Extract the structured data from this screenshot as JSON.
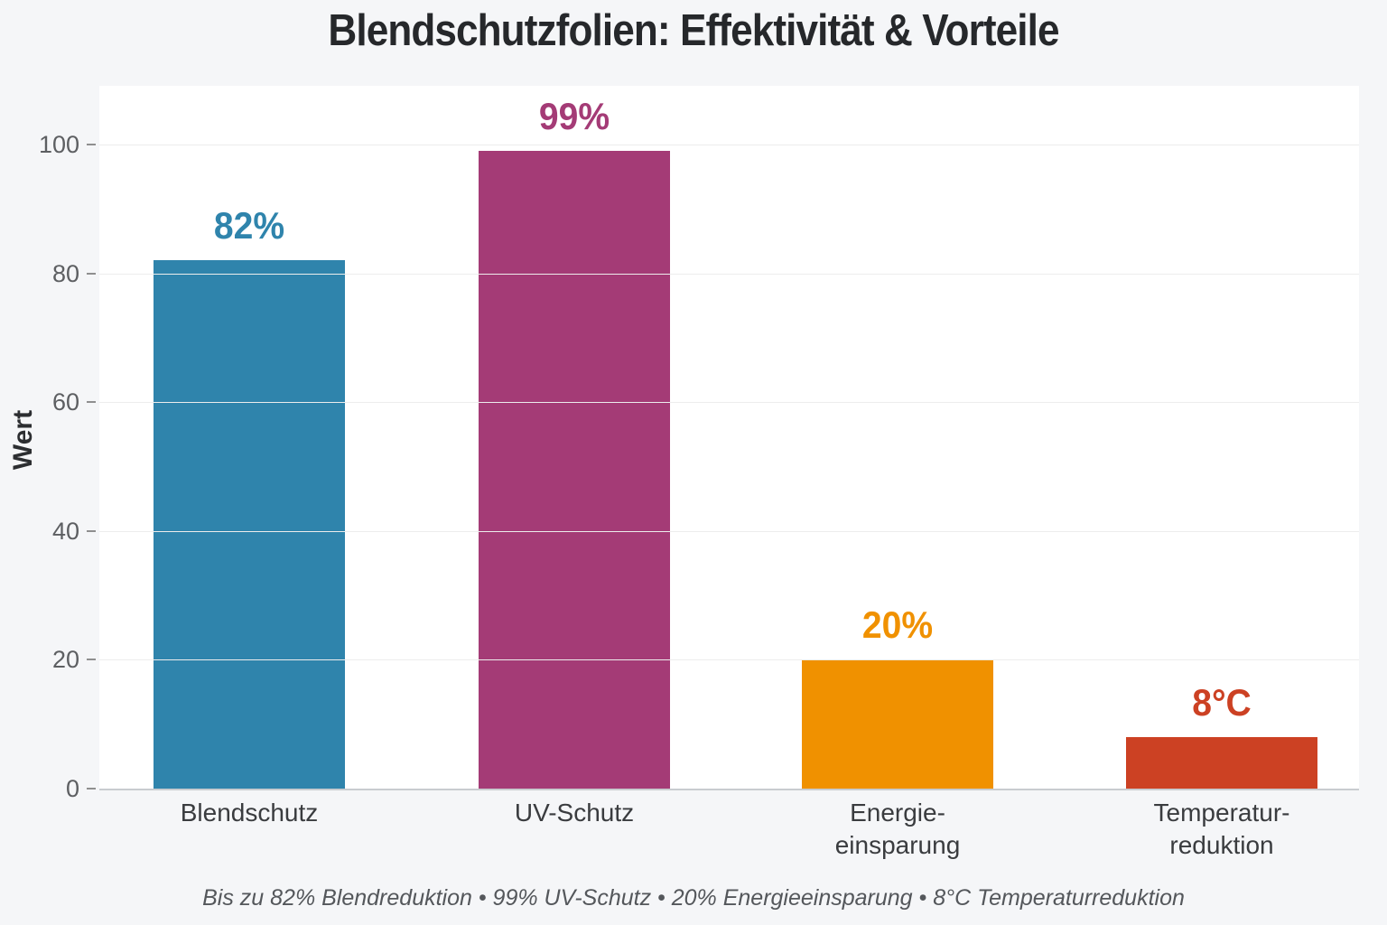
{
  "chart_data": {
    "type": "bar",
    "title": "Blendschutzfolien: Effektivität & Vorteile",
    "ylabel": "Wert",
    "ylim": [
      0,
      100
    ],
    "yticks": [
      0,
      20,
      40,
      60,
      80,
      100
    ],
    "grid": true,
    "legend": "none",
    "categories": [
      "Blendschutz",
      "UV-Schutz",
      "Energie-\neinsparung",
      "Temperatur-\nreduktion"
    ],
    "values": [
      82,
      99,
      20,
      8
    ],
    "value_labels": [
      "82%",
      "99%",
      "20%",
      "8°C"
    ],
    "bar_colors": [
      "#2f84ac",
      "#a43b76",
      "#f09100",
      "#cc4123"
    ],
    "caption": "Bis zu 82% Blendreduktion • 99% UV-Schutz • 20% Energieeinsparung • 8°C Temperaturreduktion"
  }
}
